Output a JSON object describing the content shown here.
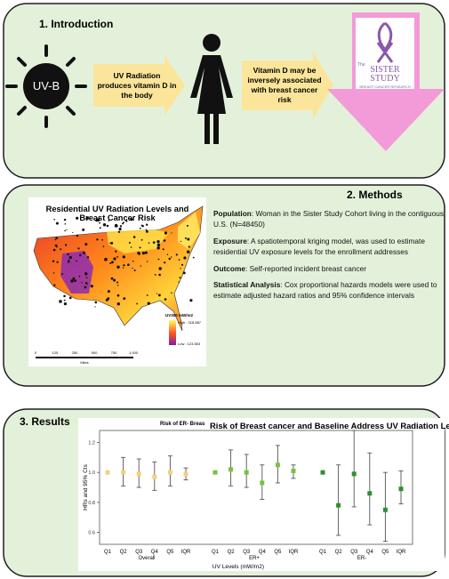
{
  "intro": {
    "heading": "1.  Introduction",
    "sun_label": "UV-B",
    "step1": "UV Radiation produces vitamin D in the body",
    "step2": "Vitamin D may be inversely associated with breast cancer risk",
    "logo": {
      "the": "The",
      "name": "SISTER STUDY",
      "tagline": "BREAST CANCER RESEARCH"
    }
  },
  "methods": {
    "heading": "2.  Methods",
    "map": {
      "title": "Residential UV Radiation Levels and Breast Cancer Risk",
      "legend_title": "UV300 mW/m2",
      "legend_high": "High : 318.887",
      "legend_low": "Low : 123.553",
      "scale": [
        "0",
        "125",
        "250",
        "500",
        "750",
        "1,000"
      ],
      "scale_unit": "Miles"
    },
    "items": [
      {
        "label": "Population",
        "text": ": Woman in the Sister Study Cohort living in the contiguous U.S. (N=48450)"
      },
      {
        "label": "Exposure",
        "text": ": A spatiotemporal kriging model, was used to estimate residential UV exposure levels for the enrollment addresses"
      },
      {
        "label": "Outcome",
        "text": ": Self-reported incident breast cancer"
      },
      {
        "label": "Statistical Analysis",
        "text": ": Cox proportional hazards models were used to estimate adjusted hazard ratios and 95% confidence intervals"
      }
    ]
  },
  "results": {
    "heading": "3.  Results"
  },
  "chart_data": {
    "type": "errorbar",
    "title": "Risk of Breast cancer and Baseline Address UV Radiation Levels",
    "subtitle": "Risk of ER- Breas",
    "y_label": "HRs and 95% CIs",
    "x_label": "UV Levels (mW/m2)",
    "categories": [
      "Q1",
      "Q2",
      "Q3",
      "Q4",
      "Q5",
      "IQR"
    ],
    "ylim": [
      0.52,
      1.28
    ],
    "yticks": [
      0.6,
      0.8,
      {
        "value": 1,
        "label": "1.0"
      },
      1.2
    ],
    "series": [
      {
        "name": "Overall",
        "color": "#f2d27a",
        "values": [
          1,
          1,
          0.99,
          0.97,
          1,
          0.99
        ],
        "lower": [
          null,
          0.91,
          0.9,
          0.88,
          0.91,
          0.95
        ],
        "upper": [
          null,
          1.1,
          1.09,
          1.07,
          1.11,
          1.03
        ]
      },
      {
        "name": "ER+",
        "color": "#79c043",
        "values": [
          1,
          1.02,
          1,
          0.93,
          1.05,
          1.01
        ],
        "lower": [
          null,
          0.91,
          0.9,
          0.82,
          0.93,
          0.96
        ],
        "upper": [
          null,
          1.15,
          1.12,
          1.05,
          1.18,
          1.05
        ]
      },
      {
        "name": "ER-",
        "color": "#2f8f2f",
        "values": [
          1,
          0.78,
          0.99,
          0.86,
          0.75,
          0.89
        ],
        "lower": [
          null,
          0.58,
          0.77,
          0.65,
          0.54,
          0.79
        ],
        "upper": [
          null,
          1.05,
          1.28,
          1.13,
          1,
          1.01
        ]
      }
    ]
  }
}
